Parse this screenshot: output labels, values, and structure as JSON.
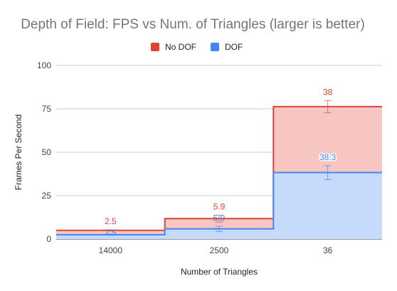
{
  "chart_data": {
    "type": "area",
    "title": "Depth of Field: FPS vs Num. of Triangles (larger is better)",
    "xlabel": "Number of Triangles",
    "ylabel": "Frames Per Second",
    "categories": [
      "14000",
      "2500",
      "36"
    ],
    "ylim": [
      0,
      100
    ],
    "yticks": [
      "0",
      "25",
      "50",
      "75",
      "100"
    ],
    "grid": true,
    "legend_position": "top",
    "series": [
      {
        "name": "No DOF",
        "values": [
          5,
          11.8,
          76.3
        ],
        "labels": [
          "2.5",
          "5.9",
          "38"
        ],
        "error": [
          0.3,
          2,
          3.5
        ],
        "line_color": "#db4437",
        "fill_color": "#f8c6c2"
      },
      {
        "name": "DOF",
        "values": [
          2.5,
          5.9,
          38.3
        ],
        "labels": [
          "2.5",
          "5.9",
          "38.3"
        ],
        "error": [
          0.3,
          1.5,
          4
        ],
        "line_color": "#4285f4",
        "fill_color": "#c6dafc"
      }
    ]
  }
}
